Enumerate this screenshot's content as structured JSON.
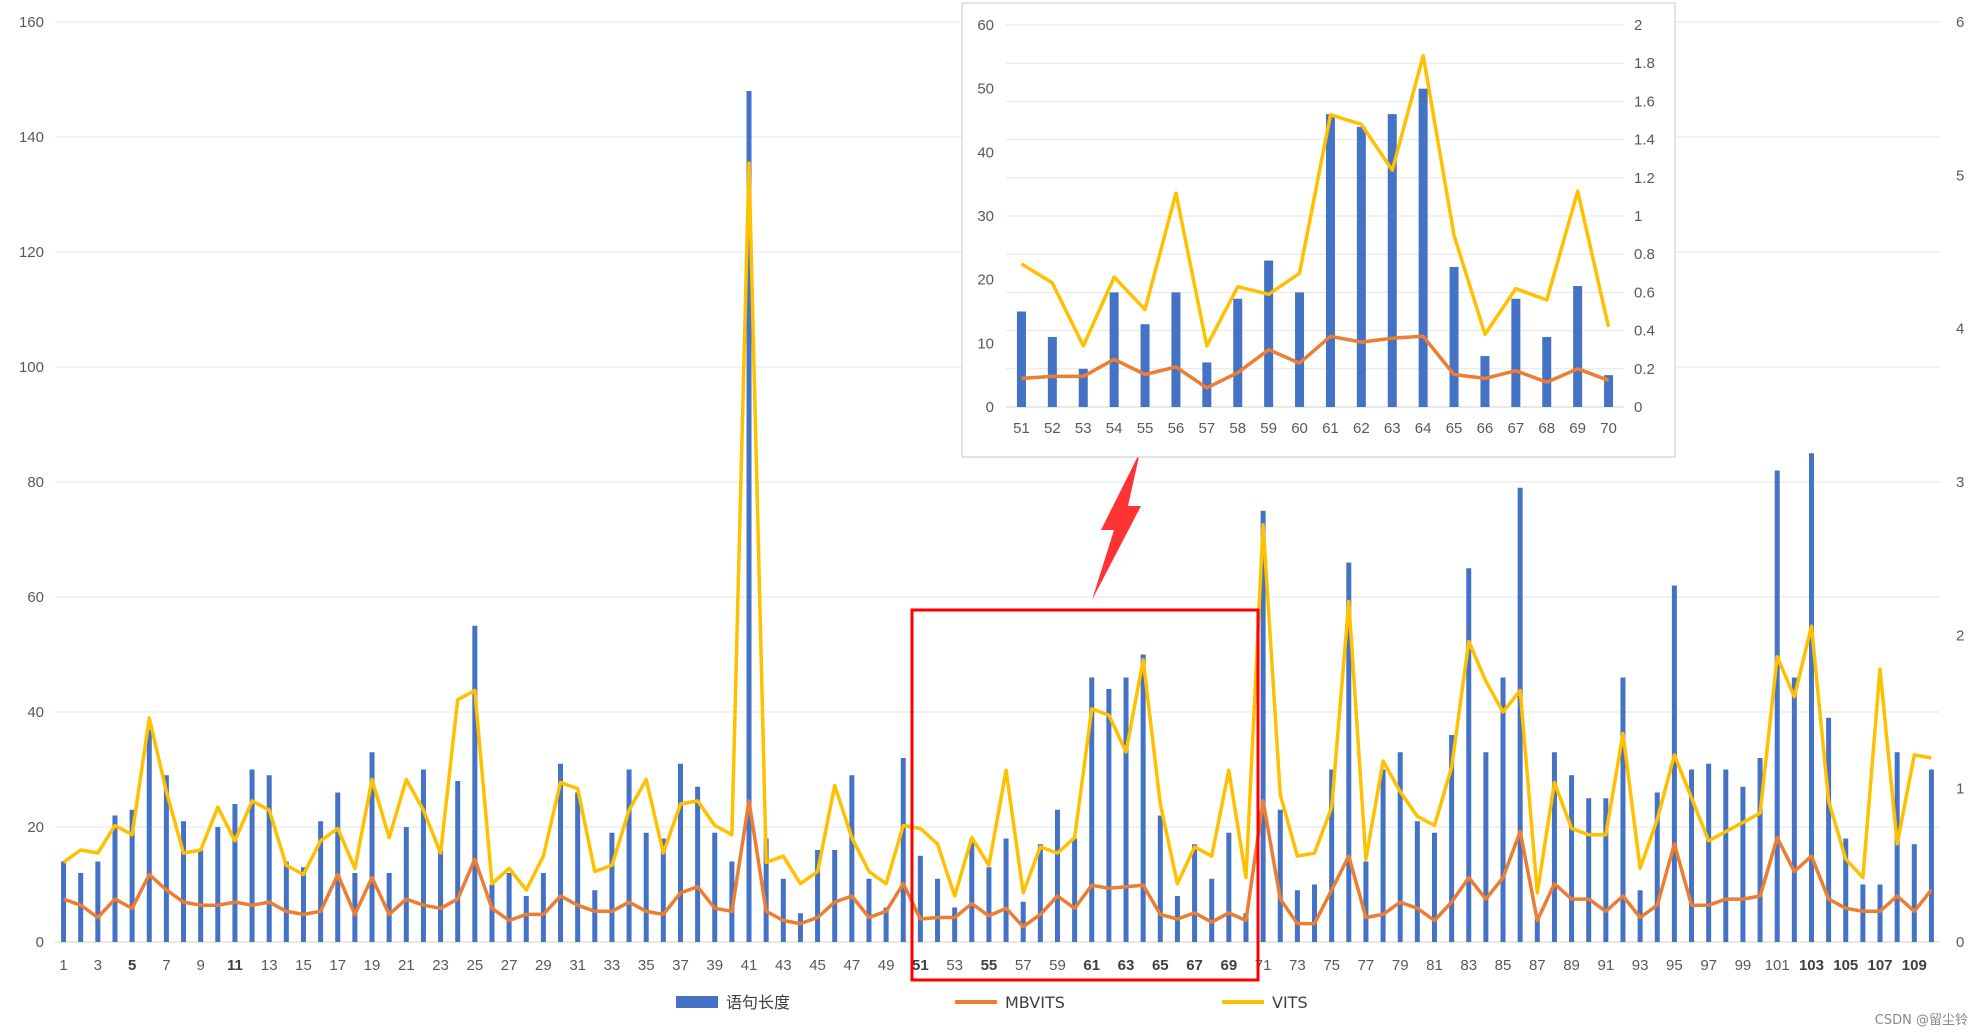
{
  "chart_data": [
    {
      "type": "bar+line",
      "title": "",
      "xlabel": "",
      "ylabel": "",
      "y2label": "",
      "ylim": [
        0,
        160
      ],
      "yticks": [
        0,
        20,
        40,
        60,
        80,
        100,
        120,
        140,
        160
      ],
      "y2lim": [
        0,
        6
      ],
      "y2ticks": [
        0,
        1,
        2,
        3,
        4,
        5,
        6
      ],
      "x_tick_labels": [
        "1",
        "3",
        "5",
        "7",
        "9",
        "11",
        "13",
        "15",
        "17",
        "19",
        "21",
        "23",
        "25",
        "27",
        "29",
        "31",
        "33",
        "35",
        "37",
        "39",
        "41",
        "43",
        "45",
        "47",
        "49",
        "51",
        "53",
        "55",
        "57",
        "59",
        "61",
        "63",
        "65",
        "67",
        "69",
        "71",
        "73",
        "75",
        "77",
        "79",
        "81",
        "83",
        "85",
        "87",
        "89",
        "91",
        "93",
        "95",
        "97",
        "99",
        "101",
        "103",
        "105",
        "107",
        "109"
      ],
      "x": [
        1,
        2,
        3,
        4,
        5,
        6,
        7,
        8,
        9,
        10,
        11,
        12,
        13,
        14,
        15,
        16,
        17,
        18,
        19,
        20,
        21,
        22,
        23,
        24,
        25,
        26,
        27,
        28,
        29,
        30,
        31,
        32,
        33,
        34,
        35,
        36,
        37,
        38,
        39,
        40,
        41,
        42,
        43,
        44,
        45,
        46,
        47,
        48,
        49,
        50,
        51,
        52,
        53,
        54,
        55,
        56,
        57,
        58,
        59,
        60,
        61,
        62,
        63,
        64,
        65,
        66,
        67,
        68,
        69,
        70,
        71,
        72,
        73,
        74,
        75,
        76,
        77,
        78,
        79,
        80,
        81,
        82,
        83,
        84,
        85,
        86,
        87,
        88,
        89,
        90,
        91,
        92,
        93,
        94,
        95,
        96,
        97,
        98,
        99,
        100,
        101,
        102,
        103,
        104,
        105,
        106,
        107,
        108,
        109,
        110
      ],
      "series": [
        {
          "name": "语句长度",
          "kind": "bar",
          "axis": "left",
          "color": "#4472C4",
          "values": [
            14,
            12,
            14,
            22,
            23,
            37,
            29,
            21,
            16,
            20,
            24,
            30,
            29,
            14,
            13,
            21,
            26,
            12,
            33,
            12,
            20,
            30,
            16,
            28,
            55,
            10,
            12,
            8,
            12,
            31,
            26,
            9,
            19,
            30,
            19,
            18,
            31,
            27,
            19,
            14,
            148,
            18,
            11,
            5,
            16,
            16,
            29,
            11,
            6,
            32,
            15,
            11,
            6,
            18,
            13,
            18,
            7,
            17,
            23,
            18,
            46,
            44,
            46,
            50,
            22,
            8,
            17,
            11,
            19,
            5,
            75,
            23,
            9,
            10,
            30,
            66,
            14,
            30,
            33,
            21,
            19,
            36,
            65,
            33,
            46,
            79,
            4,
            33,
            29,
            25,
            25,
            46,
            9,
            26,
            62,
            30,
            31,
            30,
            27,
            32,
            82,
            46,
            85,
            39,
            18,
            10,
            10,
            33,
            17,
            30
          ]
        },
        {
          "name": "MBVITS",
          "kind": "line",
          "axis": "right",
          "color": "#ED7D31",
          "values": [
            0.28,
            0.24,
            0.16,
            0.28,
            0.22,
            0.44,
            0.34,
            0.26,
            0.24,
            0.24,
            0.26,
            0.24,
            0.26,
            0.2,
            0.18,
            0.2,
            0.44,
            0.18,
            0.42,
            0.18,
            0.28,
            0.24,
            0.22,
            0.28,
            0.54,
            0.22,
            0.14,
            0.18,
            0.18,
            0.3,
            0.24,
            0.2,
            0.2,
            0.26,
            0.2,
            0.18,
            0.32,
            0.36,
            0.22,
            0.2,
            0.92,
            0.2,
            0.14,
            0.12,
            0.16,
            0.26,
            0.3,
            0.16,
            0.2,
            0.38,
            0.15,
            0.16,
            0.16,
            0.25,
            0.17,
            0.22,
            0.1,
            0.18,
            0.3,
            0.22,
            0.37,
            0.35,
            0.36,
            0.37,
            0.18,
            0.15,
            0.19,
            0.13,
            0.19,
            0.14,
            0.92,
            0.28,
            0.12,
            0.12,
            0.34,
            0.56,
            0.16,
            0.18,
            0.26,
            0.22,
            0.14,
            0.26,
            0.42,
            0.28,
            0.42,
            0.72,
            0.14,
            0.38,
            0.28,
            0.28,
            0.2,
            0.3,
            0.16,
            0.24,
            0.64,
            0.24,
            0.24,
            0.28,
            0.28,
            0.3,
            0.68,
            0.46,
            0.56,
            0.28,
            0.22,
            0.2,
            0.2,
            0.3,
            0.2,
            0.34
          ]
        },
        {
          "name": "VITS",
          "kind": "line",
          "axis": "right",
          "color": "#FFC000",
          "values": [
            0.52,
            0.6,
            0.58,
            0.76,
            0.7,
            1.46,
            0.98,
            0.58,
            0.6,
            0.88,
            0.66,
            0.92,
            0.86,
            0.5,
            0.44,
            0.66,
            0.74,
            0.48,
            1.06,
            0.68,
            1.06,
            0.86,
            0.58,
            1.58,
            1.64,
            0.38,
            0.48,
            0.34,
            0.56,
            1.04,
            1.0,
            0.46,
            0.5,
            0.86,
            1.06,
            0.58,
            0.9,
            0.92,
            0.76,
            0.7,
            5.08,
            0.52,
            0.56,
            0.38,
            0.46,
            1.02,
            0.68,
            0.46,
            0.38,
            0.76,
            0.74,
            0.64,
            0.3,
            0.68,
            0.5,
            1.12,
            0.32,
            0.62,
            0.58,
            0.68,
            1.52,
            1.48,
            1.24,
            1.84,
            0.9,
            0.38,
            0.62,
            0.56,
            1.12,
            0.42,
            2.72,
            0.96,
            0.56,
            0.58,
            0.88,
            2.22,
            0.54,
            1.18,
            0.98,
            0.82,
            0.76,
            1.14,
            1.96,
            1.7,
            1.5,
            1.64,
            0.32,
            1.04,
            0.74,
            0.7,
            0.7,
            1.36,
            0.48,
            0.8,
            1.22,
            0.94,
            0.66,
            0.72,
            0.78,
            0.84,
            1.86,
            1.6,
            2.06,
            0.92,
            0.54,
            0.42,
            1.78,
            0.64,
            1.22,
            1.2
          ]
        }
      ]
    },
    {
      "type": "bar+line",
      "title": "",
      "xlabel": "",
      "ylabel": "",
      "y2label": "",
      "ylim": [
        0,
        60
      ],
      "yticks": [
        0,
        10,
        20,
        30,
        40,
        50,
        60
      ],
      "y2lim": [
        0,
        2
      ],
      "y2ticks": [
        "0",
        "0.2",
        "0.4",
        "0.6",
        "0.8",
        "1",
        "1.2",
        "1.4",
        "1.6",
        "1.8",
        "2"
      ],
      "categories": [
        "51",
        "52",
        "53",
        "54",
        "55",
        "56",
        "57",
        "58",
        "59",
        "60",
        "61",
        "62",
        "63",
        "64",
        "65",
        "66",
        "67",
        "68",
        "69",
        "70"
      ],
      "series": [
        {
          "name": "语句长度",
          "kind": "bar",
          "axis": "left",
          "color": "#4472C4",
          "values": [
            15,
            11,
            6,
            18,
            13,
            18,
            7,
            17,
            23,
            18,
            46,
            44,
            46,
            50,
            22,
            8,
            17,
            11,
            19,
            5
          ]
        },
        {
          "name": "MBVITS",
          "kind": "line",
          "axis": "right",
          "color": "#ED7D31",
          "values": [
            0.15,
            0.16,
            0.16,
            0.25,
            0.17,
            0.21,
            0.1,
            0.18,
            0.3,
            0.23,
            0.37,
            0.34,
            0.36,
            0.37,
            0.17,
            0.15,
            0.19,
            0.13,
            0.2,
            0.14
          ]
        },
        {
          "name": "VITS",
          "kind": "line",
          "axis": "right",
          "color": "#FFC000",
          "values": [
            0.75,
            0.65,
            0.32,
            0.68,
            0.51,
            1.12,
            0.32,
            0.63,
            0.59,
            0.7,
            1.53,
            1.48,
            1.24,
            1.84,
            0.9,
            0.38,
            0.62,
            0.56,
            1.13,
            0.42
          ]
        }
      ]
    }
  ],
  "legend": {
    "placement": "bottom",
    "items": [
      "语句长度",
      "MBVITS",
      "VITS"
    ]
  },
  "bold_tick_labels": [
    "5",
    "11",
    "51",
    "55",
    "61",
    "63",
    "65",
    "67",
    "69",
    "103",
    "105",
    "107",
    "109"
  ],
  "watermark": "CSDN @留尘铃",
  "annotation": {
    "highlight_range": [
      "51",
      "70"
    ],
    "highlight_color": "#FF0000",
    "arrow_color": "#FF3333"
  }
}
